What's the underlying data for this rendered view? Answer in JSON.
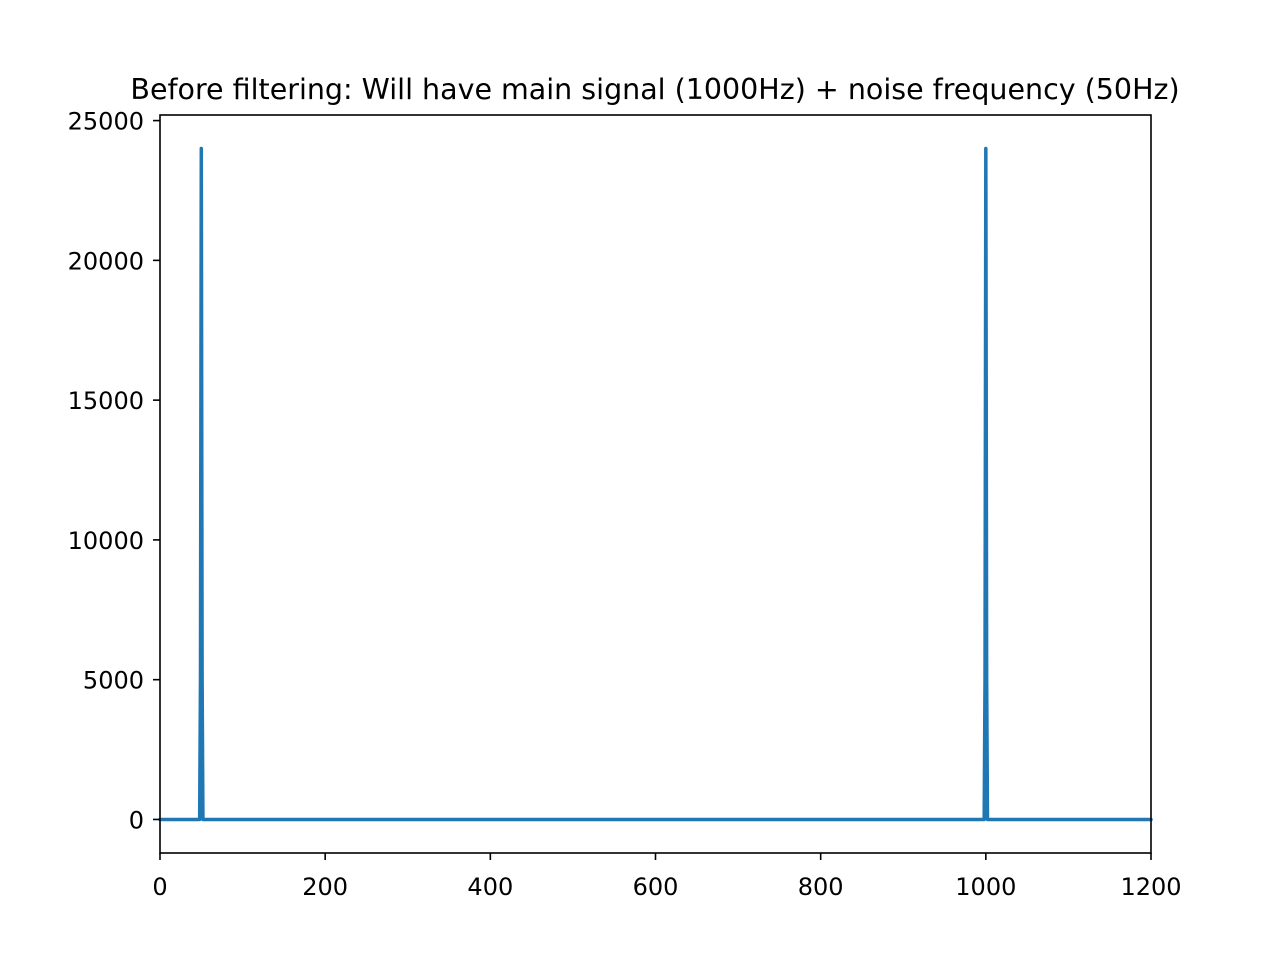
{
  "chart_data": {
    "type": "line",
    "title": "Before filtering: Will have main signal (1000Hz) + noise frequency (50Hz)",
    "xlabel": "",
    "ylabel": "",
    "xlim": [
      0,
      1200
    ],
    "ylim": [
      -1200,
      25200
    ],
    "x_ticks": [
      0,
      200,
      400,
      600,
      800,
      1000,
      1200
    ],
    "y_ticks": [
      0,
      5000,
      10000,
      15000,
      20000,
      25000
    ],
    "grid": false,
    "legend": "none",
    "series": [
      {
        "color": "#1f77b4",
        "x": [
          0,
          48,
          49,
          50,
          51,
          52,
          998,
          999,
          1000,
          1001,
          1002,
          1200
        ],
        "y": [
          0,
          0,
          5000,
          24000,
          5000,
          0,
          0,
          5000,
          24000,
          5000,
          0,
          0
        ]
      }
    ]
  }
}
